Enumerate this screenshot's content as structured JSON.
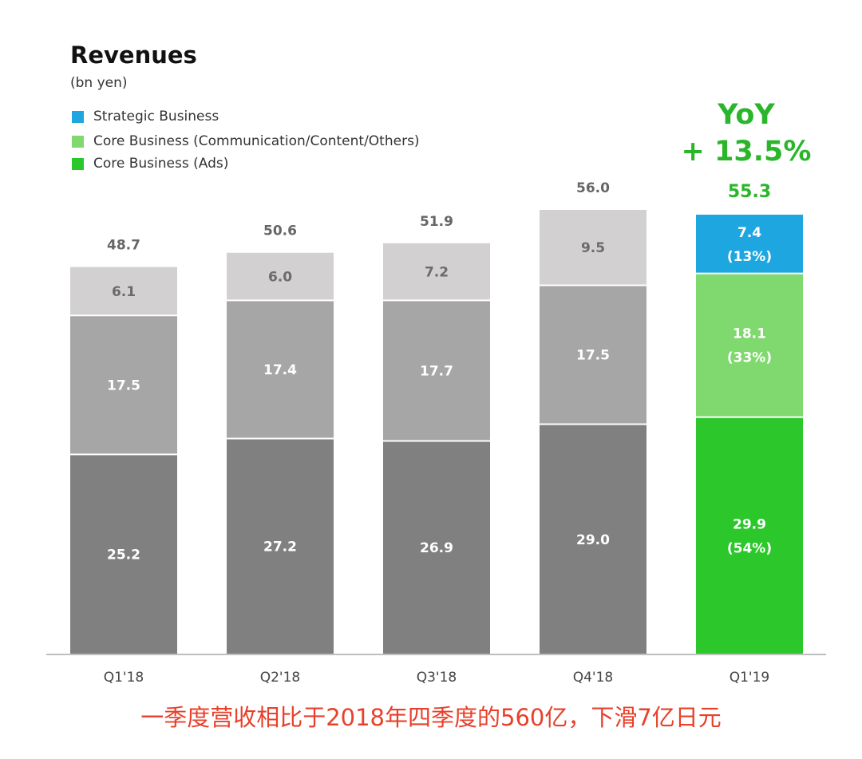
{
  "header": {
    "title": "Revenues",
    "unit": "(bn yen)"
  },
  "legend": [
    {
      "label": "Strategic Business",
      "color": "#1ea6e0"
    },
    {
      "label": "Core Business (Communication/Content/Others)",
      "color": "#7fd96e"
    },
    {
      "label": "Core Business (Ads)",
      "color": "#2bc72b"
    }
  ],
  "yoy": {
    "label": "YoY",
    "value": "+ 13.5%"
  },
  "caption": "一季度营收相比于2018年四季度的560亿，下滑7亿日元",
  "chart_data": {
    "type": "bar",
    "stacked": true,
    "categories": [
      "Q1'18",
      "Q2'18",
      "Q3'18",
      "Q4'18",
      "Q1'19"
    ],
    "series": [
      {
        "name": "Core Business (Ads)",
        "values": [
          25.2,
          27.2,
          26.9,
          29.0,
          29.9
        ],
        "labels": [
          "25.2",
          "27.2",
          "26.9",
          "29.0",
          "29.9\n(54%)"
        ]
      },
      {
        "name": "Core Business (Communication/Content/Others)",
        "values": [
          17.5,
          17.4,
          17.7,
          17.5,
          18.1
        ],
        "labels": [
          "17.5",
          "17.4",
          "17.7",
          "17.5",
          "18.1\n(33%)"
        ]
      },
      {
        "name": "Strategic Business",
        "values": [
          6.1,
          6.0,
          7.2,
          9.5,
          7.4
        ],
        "labels": [
          "6.1",
          "6.0",
          "7.2",
          "9.5",
          "7.4\n(13%)"
        ]
      }
    ],
    "totals": [
      48.7,
      50.6,
      51.9,
      56.0,
      55.3
    ],
    "total_labels": [
      "48.7",
      "50.6",
      "51.9",
      "56.0",
      "55.3"
    ],
    "colors": {
      "past": [
        "#808080",
        "#a6a6a6",
        "#d2d0d0"
      ],
      "highlight": [
        "#2bc72b",
        "#7fd96e",
        "#1ea6e0"
      ],
      "past_total_text": "#666666",
      "highlight_total_text": "#2bb52b",
      "axis": "#bfbfbf"
    },
    "ylim": [
      0,
      56.0
    ],
    "xlabel": "",
    "ylabel": "",
    "grid": false
  }
}
